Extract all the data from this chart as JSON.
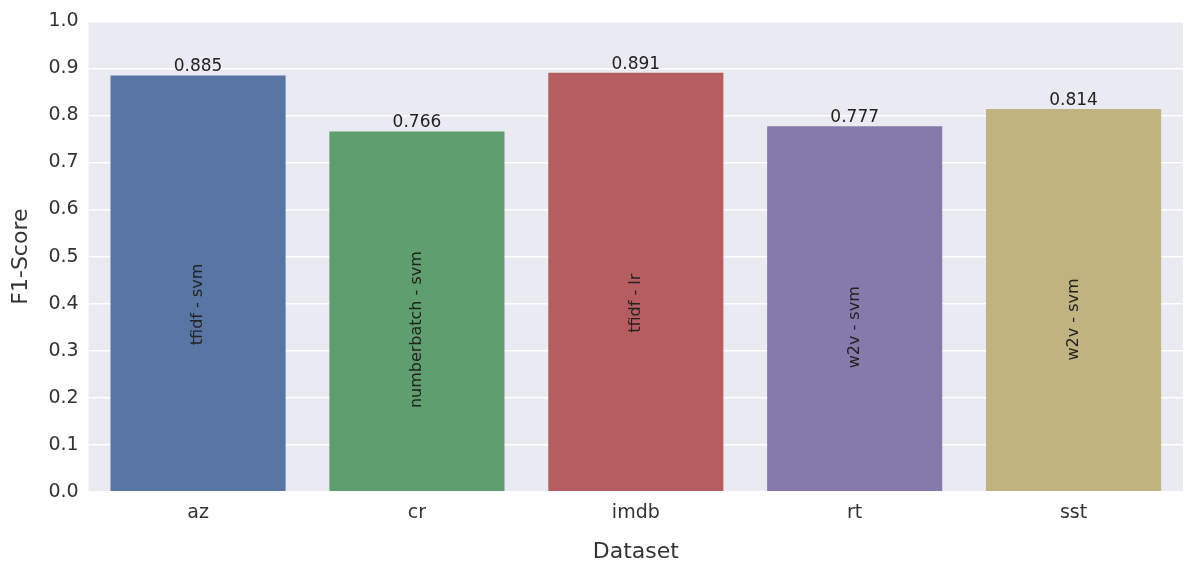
{
  "chart_data": {
    "type": "bar",
    "xlabel": "Dataset",
    "ylabel": "F1-Score",
    "categories": [
      "az",
      "cr",
      "imdb",
      "rt",
      "sst"
    ],
    "values": [
      0.885,
      0.766,
      0.891,
      0.777,
      0.814
    ],
    "colors": [
      "#5975a4",
      "#5f9e6e",
      "#b55d60",
      "#857aab",
      "#c1b37f"
    ],
    "ylim": [
      0,
      1
    ],
    "yticks": [
      {
        "value": 0,
        "label": "0.0"
      },
      0.1,
      0.2,
      0.3,
      0.4,
      0.5,
      0.6,
      0.7,
      0.8,
      0.9,
      {
        "value": 1,
        "label": "1.0"
      }
    ],
    "grid": "y",
    "legend": false,
    "data_labels": true,
    "annotations": [
      "tfidf - svm",
      "numberbatch - svm",
      "tfidf - lr",
      "w2v - svm",
      "w2v - svm"
    ]
  }
}
